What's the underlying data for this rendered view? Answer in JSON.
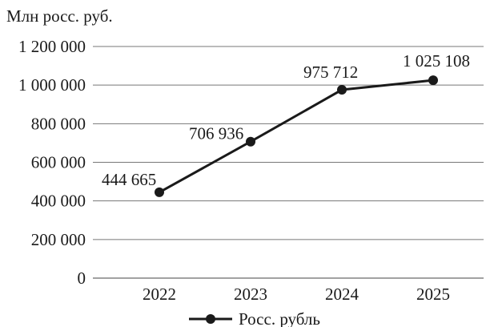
{
  "chart_data": {
    "type": "line",
    "ylabel": "Млн росс. руб.",
    "categories": [
      "2022",
      "2023",
      "2024",
      "2025"
    ],
    "series": [
      {
        "name": "Росс. рубль",
        "values": [
          444665,
          706936,
          975712,
          1025108
        ],
        "labels": [
          "444 665",
          "706 936",
          "975 712",
          "1 025 108"
        ]
      }
    ],
    "ylim": [
      0,
      1200000
    ],
    "yticks": [
      0,
      200000,
      400000,
      600000,
      800000,
      1000000,
      1200000
    ],
    "ytick_labels": [
      "0",
      "200 000",
      "400 000",
      "600 000",
      "800 000",
      "1 000 000",
      "1 200 000"
    ],
    "grid": true,
    "legend": "bottom",
    "color": "#1a1a1a"
  }
}
